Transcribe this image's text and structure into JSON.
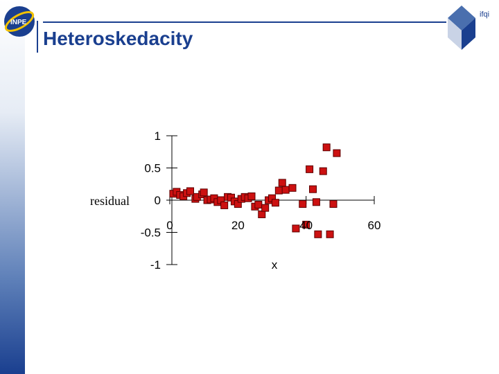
{
  "slide": {
    "title": "Heteroskedacity",
    "logo_left_text": "INPE",
    "logo_right_text": "ifqi"
  },
  "chart_data": {
    "type": "scatter",
    "xlabel": "x",
    "ylabel": "residual",
    "xlim": [
      0,
      60
    ],
    "ylim": [
      -1,
      1
    ],
    "xticks": [
      0,
      20,
      40,
      60
    ],
    "yticks": [
      1,
      0.5,
      0,
      -0.5,
      -1
    ],
    "xtick_labels": [
      "0",
      "20",
      "40",
      "60"
    ],
    "ytick_labels": [
      "1",
      "0.5",
      "0",
      "-0.5",
      "-1"
    ],
    "marker": "square",
    "marker_color": "#cc1111",
    "points": [
      {
        "x": 1.0,
        "y": 0.1
      },
      {
        "x": 2.0,
        "y": 0.13
      },
      {
        "x": 3.0,
        "y": 0.08
      },
      {
        "x": 4.0,
        "y": 0.06
      },
      {
        "x": 5.0,
        "y": 0.11
      },
      {
        "x": 6.0,
        "y": 0.14
      },
      {
        "x": 7.5,
        "y": 0.02
      },
      {
        "x": 8.0,
        "y": 0.05
      },
      {
        "x": 9.5,
        "y": 0.09
      },
      {
        "x": 10.0,
        "y": 0.12
      },
      {
        "x": 11.0,
        "y": 0.0
      },
      {
        "x": 12.0,
        "y": 0.01
      },
      {
        "x": 13.0,
        "y": 0.03
      },
      {
        "x": 14.0,
        "y": -0.03
      },
      {
        "x": 15.0,
        "y": 0.0
      },
      {
        "x": 16.0,
        "y": -0.08
      },
      {
        "x": 17.0,
        "y": 0.05
      },
      {
        "x": 18.0,
        "y": 0.04
      },
      {
        "x": 19.0,
        "y": -0.02
      },
      {
        "x": 20.0,
        "y": -0.06
      },
      {
        "x": 21.0,
        "y": 0.02
      },
      {
        "x": 22.0,
        "y": 0.05
      },
      {
        "x": 23.0,
        "y": 0.03
      },
      {
        "x": 24.0,
        "y": 0.06
      },
      {
        "x": 25.0,
        "y": -0.1
      },
      {
        "x": 26.0,
        "y": -0.07
      },
      {
        "x": 27.0,
        "y": -0.22
      },
      {
        "x": 28.0,
        "y": -0.12
      },
      {
        "x": 29.0,
        "y": 0.0
      },
      {
        "x": 30.0,
        "y": 0.03
      },
      {
        "x": 31.0,
        "y": -0.04
      },
      {
        "x": 32.0,
        "y": 0.15
      },
      {
        "x": 33.0,
        "y": 0.27
      },
      {
        "x": 34.0,
        "y": 0.16
      },
      {
        "x": 36.0,
        "y": 0.19
      },
      {
        "x": 37.0,
        "y": -0.44
      },
      {
        "x": 39.0,
        "y": -0.06
      },
      {
        "x": 40.0,
        "y": -0.38
      },
      {
        "x": 41.0,
        "y": 0.48
      },
      {
        "x": 42.0,
        "y": 0.17
      },
      {
        "x": 43.0,
        "y": -0.03
      },
      {
        "x": 43.5,
        "y": -0.53
      },
      {
        "x": 45.0,
        "y": 0.45
      },
      {
        "x": 46.0,
        "y": 0.82
      },
      {
        "x": 47.0,
        "y": -0.53
      },
      {
        "x": 48.0,
        "y": -0.06
      },
      {
        "x": 49.0,
        "y": 0.73
      }
    ]
  }
}
